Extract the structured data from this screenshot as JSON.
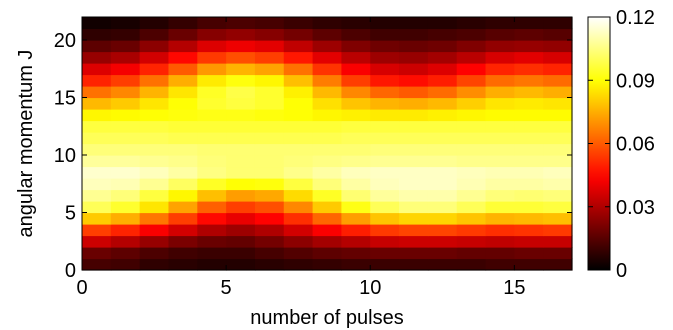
{
  "chart_data": {
    "type": "heatmap",
    "title": "",
    "xlabel": "number of pulses",
    "ylabel": "angular momentum J",
    "x": [
      0,
      1,
      2,
      3,
      4,
      5,
      6,
      7,
      8,
      9,
      10,
      11,
      12,
      13,
      14,
      15,
      16
    ],
    "y": [
      0,
      1,
      2,
      3,
      4,
      5,
      6,
      7,
      8,
      9,
      10,
      11,
      12,
      13,
      14,
      15,
      16,
      17,
      18,
      19,
      20,
      21
    ],
    "xlim": [
      0,
      17
    ],
    "ylim": [
      0,
      22
    ],
    "xticks": [
      0,
      5,
      10,
      15
    ],
    "yticks": [
      0,
      5,
      10,
      15,
      20
    ],
    "colorscale": "hot",
    "colorbar": {
      "range": [
        0,
        0.12
      ],
      "ticks": [
        0,
        0.03,
        0.06,
        0.09,
        0.12
      ],
      "tick_labels": [
        "0",
        "0.03",
        "0.06",
        "0.09",
        "0.12"
      ]
    },
    "values": [
      [
        0.012,
        0.011,
        0.008,
        0.007,
        0.006,
        0.006,
        0.007,
        0.008,
        0.009,
        0.01,
        0.01,
        0.01,
        0.01,
        0.01,
        0.011,
        0.011,
        0.011
      ],
      [
        0.018,
        0.016,
        0.013,
        0.011,
        0.01,
        0.01,
        0.012,
        0.014,
        0.016,
        0.017,
        0.018,
        0.018,
        0.018,
        0.017,
        0.017,
        0.018,
        0.018
      ],
      [
        0.035,
        0.031,
        0.026,
        0.021,
        0.018,
        0.017,
        0.02,
        0.024,
        0.028,
        0.031,
        0.034,
        0.035,
        0.035,
        0.034,
        0.033,
        0.034,
        0.034
      ],
      [
        0.055,
        0.05,
        0.043,
        0.036,
        0.03,
        0.027,
        0.03,
        0.036,
        0.043,
        0.049,
        0.054,
        0.056,
        0.056,
        0.054,
        0.052,
        0.053,
        0.054
      ],
      [
        0.08,
        0.075,
        0.065,
        0.055,
        0.045,
        0.04,
        0.044,
        0.052,
        0.062,
        0.072,
        0.079,
        0.082,
        0.082,
        0.079,
        0.076,
        0.077,
        0.078
      ],
      [
        0.1,
        0.095,
        0.085,
        0.073,
        0.061,
        0.055,
        0.058,
        0.068,
        0.08,
        0.092,
        0.1,
        0.104,
        0.104,
        0.1,
        0.096,
        0.096,
        0.097
      ],
      [
        0.107,
        0.104,
        0.097,
        0.088,
        0.078,
        0.072,
        0.074,
        0.083,
        0.094,
        0.103,
        0.108,
        0.11,
        0.11,
        0.107,
        0.104,
        0.103,
        0.104
      ],
      [
        0.112,
        0.111,
        0.107,
        0.101,
        0.094,
        0.09,
        0.091,
        0.097,
        0.104,
        0.109,
        0.112,
        0.113,
        0.113,
        0.111,
        0.109,
        0.109,
        0.11
      ],
      [
        0.114,
        0.114,
        0.112,
        0.109,
        0.105,
        0.103,
        0.103,
        0.106,
        0.109,
        0.112,
        0.113,
        0.113,
        0.113,
        0.112,
        0.111,
        0.111,
        0.112
      ],
      [
        0.108,
        0.108,
        0.107,
        0.106,
        0.104,
        0.103,
        0.103,
        0.104,
        0.105,
        0.106,
        0.107,
        0.107,
        0.107,
        0.106,
        0.106,
        0.106,
        0.106
      ],
      [
        0.104,
        0.104,
        0.104,
        0.104,
        0.103,
        0.103,
        0.103,
        0.103,
        0.103,
        0.103,
        0.104,
        0.104,
        0.104,
        0.104,
        0.104,
        0.104,
        0.104
      ],
      [
        0.1,
        0.1,
        0.1,
        0.099,
        0.099,
        0.099,
        0.099,
        0.099,
        0.099,
        0.1,
        0.1,
        0.1,
        0.1,
        0.1,
        0.1,
        0.1,
        0.1
      ],
      [
        0.097,
        0.097,
        0.097,
        0.096,
        0.096,
        0.096,
        0.096,
        0.096,
        0.096,
        0.097,
        0.097,
        0.097,
        0.097,
        0.097,
        0.097,
        0.097,
        0.097
      ],
      [
        0.088,
        0.089,
        0.09,
        0.091,
        0.092,
        0.092,
        0.091,
        0.09,
        0.088,
        0.087,
        0.086,
        0.086,
        0.087,
        0.088,
        0.089,
        0.089,
        0.089
      ],
      [
        0.077,
        0.08,
        0.085,
        0.09,
        0.095,
        0.097,
        0.095,
        0.09,
        0.084,
        0.079,
        0.076,
        0.075,
        0.077,
        0.081,
        0.085,
        0.086,
        0.085
      ],
      [
        0.064,
        0.068,
        0.076,
        0.085,
        0.094,
        0.098,
        0.095,
        0.087,
        0.077,
        0.068,
        0.062,
        0.06,
        0.063,
        0.069,
        0.075,
        0.077,
        0.075
      ],
      [
        0.05,
        0.055,
        0.064,
        0.075,
        0.086,
        0.091,
        0.088,
        0.078,
        0.066,
        0.055,
        0.048,
        0.046,
        0.049,
        0.056,
        0.063,
        0.065,
        0.063
      ],
      [
        0.038,
        0.042,
        0.05,
        0.06,
        0.071,
        0.076,
        0.073,
        0.064,
        0.053,
        0.043,
        0.037,
        0.035,
        0.038,
        0.044,
        0.05,
        0.052,
        0.05
      ],
      [
        0.026,
        0.029,
        0.036,
        0.045,
        0.054,
        0.058,
        0.055,
        0.048,
        0.039,
        0.032,
        0.027,
        0.026,
        0.028,
        0.032,
        0.037,
        0.039,
        0.037
      ],
      [
        0.016,
        0.018,
        0.024,
        0.031,
        0.038,
        0.041,
        0.039,
        0.033,
        0.027,
        0.022,
        0.019,
        0.018,
        0.019,
        0.022,
        0.025,
        0.026,
        0.025
      ],
      [
        0.008,
        0.009,
        0.013,
        0.018,
        0.023,
        0.025,
        0.023,
        0.02,
        0.016,
        0.013,
        0.011,
        0.011,
        0.012,
        0.013,
        0.015,
        0.016,
        0.015
      ],
      [
        0.003,
        0.004,
        0.006,
        0.009,
        0.012,
        0.013,
        0.012,
        0.01,
        0.008,
        0.007,
        0.006,
        0.006,
        0.006,
        0.007,
        0.008,
        0.008,
        0.008
      ]
    ]
  }
}
